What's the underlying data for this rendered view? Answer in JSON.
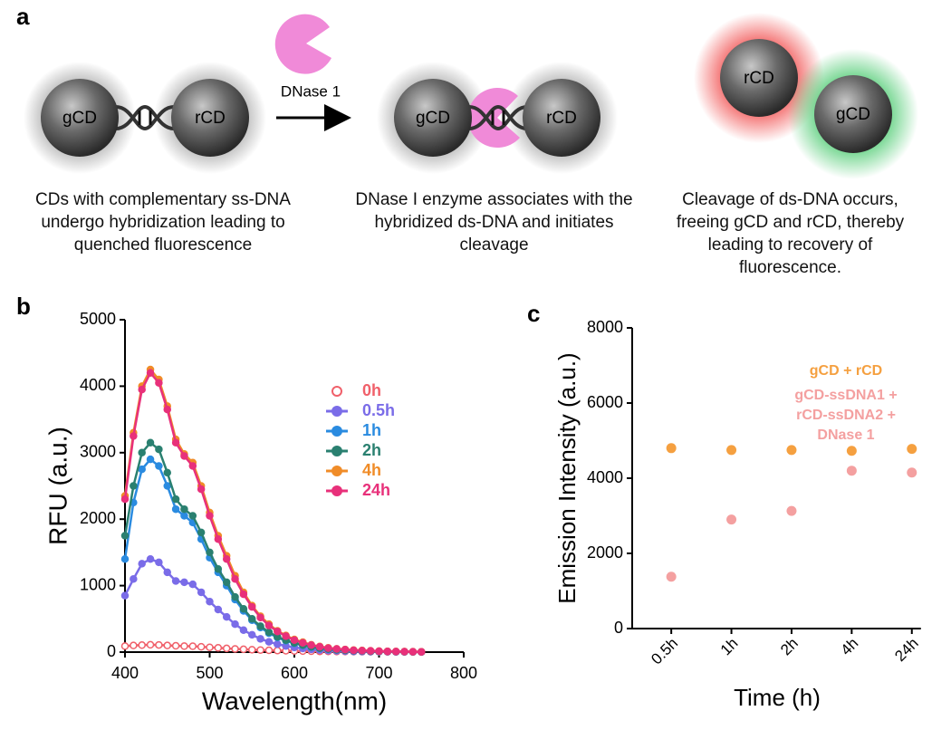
{
  "panel_a": {
    "label": "a",
    "step1": {
      "particles": [
        "gCD",
        "rCD"
      ],
      "caption": "CDs with complementary ss-DNA undergo hybridization leading to quenched fluorescence"
    },
    "enzyme": "DNase 1",
    "step2": {
      "particles": [
        "gCD",
        "rCD"
      ],
      "caption": "DNase I enzyme associates with the hybridized ds-DNA and initiates cleavage"
    },
    "step3": {
      "particles": [
        "rCD",
        "gCD"
      ],
      "caption": "Cleavage of ds-DNA occurs, freeing gCD and rCD, thereby leading to recovery of fluorescence."
    }
  },
  "chart_data": [
    {
      "type": "line",
      "label": "b",
      "ylabel": "RFU (a.u.)",
      "xlabel": "Wavelength(nm)",
      "xlim": [
        400,
        800
      ],
      "xticks": [
        400,
        500,
        600,
        700,
        800
      ],
      "ylim": [
        0,
        5000
      ],
      "yticks": [
        0,
        1000,
        2000,
        3000,
        4000,
        5000
      ],
      "legend": "upper right",
      "x": [
        400,
        410,
        420,
        430,
        440,
        450,
        460,
        470,
        480,
        490,
        500,
        510,
        520,
        530,
        540,
        550,
        560,
        570,
        580,
        590,
        600,
        610,
        620,
        630,
        640,
        650,
        660,
        670,
        680,
        690,
        700,
        710,
        720,
        730,
        740,
        750
      ],
      "series": [
        {
          "name": "0h",
          "color": "#f0606a",
          "marker": "hollow",
          "values": [
            90,
            100,
            105,
            110,
            108,
            100,
            95,
            90,
            88,
            80,
            72,
            64,
            56,
            48,
            42,
            36,
            31,
            27,
            23,
            20,
            17,
            15,
            13,
            11,
            10,
            9,
            8,
            7,
            6,
            5,
            5,
            4,
            4,
            3,
            3,
            2
          ]
        },
        {
          "name": "0.5h",
          "color": "#7a6ce8",
          "marker": "filled",
          "values": [
            850,
            1100,
            1330,
            1400,
            1350,
            1200,
            1070,
            1050,
            1020,
            900,
            760,
            640,
            530,
            420,
            330,
            260,
            200,
            155,
            120,
            92,
            70,
            54,
            41,
            31,
            24,
            18,
            14,
            11,
            9,
            7,
            6,
            5,
            4,
            3,
            2,
            2
          ]
        },
        {
          "name": "1h",
          "color": "#2a8be0",
          "marker": "filled",
          "values": [
            1400,
            2250,
            2750,
            2900,
            2800,
            2500,
            2150,
            2050,
            1950,
            1700,
            1420,
            1200,
            1000,
            790,
            620,
            480,
            370,
            285,
            220,
            170,
            130,
            100,
            75,
            57,
            44,
            34,
            27,
            21,
            17,
            13,
            10,
            8,
            6,
            5,
            4,
            3
          ]
        },
        {
          "name": "2h",
          "color": "#2a8070",
          "marker": "filled",
          "values": [
            1750,
            2500,
            3000,
            3150,
            3050,
            2700,
            2300,
            2150,
            2050,
            1800,
            1500,
            1250,
            1050,
            830,
            650,
            500,
            390,
            300,
            230,
            180,
            140,
            105,
            80,
            60,
            46,
            36,
            28,
            22,
            18,
            14,
            11,
            9,
            7,
            5,
            4,
            3
          ]
        },
        {
          "name": "4h",
          "color": "#f08c28",
          "marker": "filled",
          "values": [
            2350,
            3300,
            4000,
            4250,
            4100,
            3700,
            3200,
            2980,
            2850,
            2500,
            2100,
            1750,
            1450,
            1150,
            900,
            700,
            540,
            420,
            320,
            250,
            190,
            150,
            110,
            85,
            65,
            50,
            40,
            30,
            25,
            20,
            15,
            12,
            10,
            8,
            6,
            5
          ]
        },
        {
          "name": "24h",
          "color": "#e8307a",
          "marker": "filled",
          "values": [
            2300,
            3250,
            3950,
            4200,
            4050,
            3650,
            3150,
            2950,
            2800,
            2450,
            2050,
            1700,
            1400,
            1100,
            870,
            680,
            520,
            400,
            310,
            240,
            180,
            140,
            105,
            80,
            60,
            48,
            38,
            28,
            22,
            18,
            14,
            11,
            9,
            7,
            5,
            4
          ]
        }
      ]
    },
    {
      "type": "scatter",
      "label": "c",
      "ylabel": "Emission Intensity (a.u.)",
      "xlabel": "Time (h)",
      "categories": [
        "0.5h",
        "1h",
        "2h",
        "4h",
        "24h"
      ],
      "ylim": [
        0,
        8000
      ],
      "yticks": [
        0,
        2000,
        4000,
        6000,
        8000
      ],
      "series": [
        {
          "name": "gCD + rCD",
          "color": "#f5a040",
          "values": [
            4800,
            4750,
            4750,
            4730,
            4780
          ]
        },
        {
          "name": "gCD-ssDNA1 + rCD-ssDNA2 + DNase 1",
          "color": "#f4a0a0",
          "values": [
            1380,
            2900,
            3130,
            4200,
            4150
          ]
        }
      ]
    }
  ]
}
